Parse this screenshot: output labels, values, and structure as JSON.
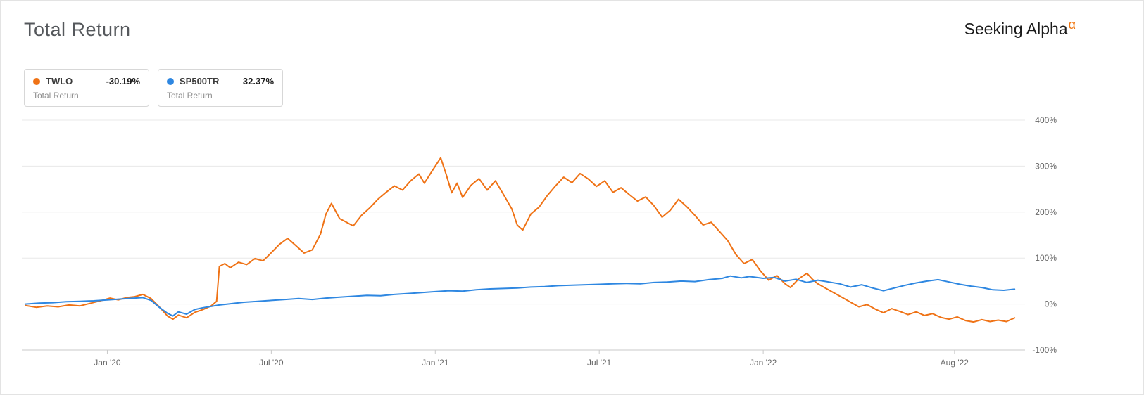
{
  "header": {
    "title": "Total Return",
    "brand": {
      "name": "Seeking Alpha",
      "alpha_symbol": "α",
      "alpha_color": "#f0750f"
    }
  },
  "legend": [
    {
      "ticker": "TWLO",
      "value": "-30.19%",
      "sublabel": "Total Return",
      "color": "#ef7215"
    },
    {
      "ticker": "SP500TR",
      "value": "32.37%",
      "sublabel": "Total Return",
      "color": "#2e87e1"
    }
  ],
  "chart_data": {
    "type": "line",
    "title": "Total Return",
    "grid": true,
    "legend_position": "top-left",
    "x_unit": "months-from-chart-start",
    "x_domain": [
      0,
      36.4
    ],
    "y_axis": {
      "min": -100,
      "max": 400,
      "ticks": [
        400,
        300,
        200,
        100,
        0,
        -100
      ],
      "suffix": "%"
    },
    "x_axis": {
      "ticks": [
        {
          "x": 3,
          "label": "Jan '20"
        },
        {
          "x": 9,
          "label": "Jul '20"
        },
        {
          "x": 15,
          "label": "Jan '21"
        },
        {
          "x": 21,
          "label": "Jul '21"
        },
        {
          "x": 27,
          "label": "Jan '22"
        },
        {
          "x": 34,
          "label": "Aug '22"
        }
      ]
    },
    "series": [
      {
        "name": "TWLO",
        "label": "Total Return",
        "final_value": "-30.19%",
        "color": "#ef7215",
        "points": [
          [
            0,
            -3
          ],
          [
            0.4,
            -7
          ],
          [
            0.8,
            -4
          ],
          [
            1.2,
            -6
          ],
          [
            1.6,
            -2
          ],
          [
            2,
            -4
          ],
          [
            2.4,
            2
          ],
          [
            2.8,
            8
          ],
          [
            3.1,
            13
          ],
          [
            3.4,
            9
          ],
          [
            3.7,
            14
          ],
          [
            4,
            16
          ],
          [
            4.3,
            21
          ],
          [
            4.6,
            12
          ],
          [
            4.9,
            -6
          ],
          [
            5.2,
            -26
          ],
          [
            5.4,
            -33
          ],
          [
            5.6,
            -24
          ],
          [
            5.9,
            -30
          ],
          [
            6.2,
            -18
          ],
          [
            6.5,
            -12
          ],
          [
            6.8,
            -4
          ],
          [
            7,
            6
          ],
          [
            7.1,
            82
          ],
          [
            7.3,
            88
          ],
          [
            7.5,
            79
          ],
          [
            7.8,
            91
          ],
          [
            8.1,
            86
          ],
          [
            8.4,
            99
          ],
          [
            8.7,
            94
          ],
          [
            9,
            112
          ],
          [
            9.3,
            130
          ],
          [
            9.6,
            143
          ],
          [
            9.9,
            127
          ],
          [
            10.2,
            111
          ],
          [
            10.5,
            118
          ],
          [
            10.8,
            152
          ],
          [
            11,
            196
          ],
          [
            11.2,
            219
          ],
          [
            11.5,
            186
          ],
          [
            12,
            170
          ],
          [
            12.3,
            193
          ],
          [
            12.6,
            209
          ],
          [
            12.9,
            228
          ],
          [
            13.2,
            243
          ],
          [
            13.5,
            257
          ],
          [
            13.8,
            248
          ],
          [
            14.1,
            268
          ],
          [
            14.4,
            283
          ],
          [
            14.6,
            263
          ],
          [
            14.9,
            291
          ],
          [
            15.2,
            318
          ],
          [
            15.4,
            282
          ],
          [
            15.6,
            242
          ],
          [
            15.8,
            263
          ],
          [
            16,
            232
          ],
          [
            16.3,
            258
          ],
          [
            16.6,
            273
          ],
          [
            16.9,
            248
          ],
          [
            17.2,
            268
          ],
          [
            17.5,
            238
          ],
          [
            17.8,
            207
          ],
          [
            18,
            172
          ],
          [
            18.2,
            161
          ],
          [
            18.5,
            196
          ],
          [
            18.8,
            211
          ],
          [
            19.1,
            236
          ],
          [
            19.4,
            257
          ],
          [
            19.7,
            276
          ],
          [
            20,
            264
          ],
          [
            20.3,
            284
          ],
          [
            20.6,
            272
          ],
          [
            20.9,
            256
          ],
          [
            21.2,
            268
          ],
          [
            21.5,
            243
          ],
          [
            21.8,
            253
          ],
          [
            22.1,
            238
          ],
          [
            22.4,
            224
          ],
          [
            22.7,
            233
          ],
          [
            23,
            214
          ],
          [
            23.3,
            189
          ],
          [
            23.6,
            204
          ],
          [
            23.9,
            228
          ],
          [
            24.2,
            212
          ],
          [
            24.5,
            193
          ],
          [
            24.8,
            172
          ],
          [
            25.1,
            178
          ],
          [
            25.4,
            158
          ],
          [
            25.7,
            138
          ],
          [
            26,
            108
          ],
          [
            26.3,
            88
          ],
          [
            26.6,
            97
          ],
          [
            26.9,
            72
          ],
          [
            27.2,
            52
          ],
          [
            27.5,
            62
          ],
          [
            27.8,
            44
          ],
          [
            28,
            36
          ],
          [
            28.3,
            55
          ],
          [
            28.6,
            67
          ],
          [
            28.8,
            54
          ],
          [
            29,
            44
          ],
          [
            29.3,
            34
          ],
          [
            29.6,
            24
          ],
          [
            29.9,
            14
          ],
          [
            30.2,
            4
          ],
          [
            30.5,
            -6
          ],
          [
            30.8,
            -1
          ],
          [
            31.1,
            -11
          ],
          [
            31.4,
            -19
          ],
          [
            31.7,
            -10
          ],
          [
            32,
            -16
          ],
          [
            32.3,
            -23
          ],
          [
            32.6,
            -17
          ],
          [
            32.9,
            -25
          ],
          [
            33.2,
            -21
          ],
          [
            33.5,
            -29
          ],
          [
            33.8,
            -33
          ],
          [
            34.1,
            -28
          ],
          [
            34.4,
            -36
          ],
          [
            34.7,
            -39
          ],
          [
            35,
            -34
          ],
          [
            35.3,
            -38
          ],
          [
            35.6,
            -35
          ],
          [
            35.9,
            -38
          ],
          [
            36.2,
            -30.19
          ]
        ]
      },
      {
        "name": "SP500TR",
        "label": "Total Return",
        "final_value": "32.37%",
        "color": "#2e87e1",
        "points": [
          [
            0,
            0
          ],
          [
            0.5,
            2
          ],
          [
            1,
            3
          ],
          [
            1.5,
            5
          ],
          [
            2,
            6
          ],
          [
            2.5,
            7
          ],
          [
            3,
            9
          ],
          [
            3.5,
            11
          ],
          [
            4,
            13
          ],
          [
            4.3,
            14
          ],
          [
            4.6,
            8
          ],
          [
            4.9,
            -7
          ],
          [
            5.2,
            -20
          ],
          [
            5.4,
            -26
          ],
          [
            5.6,
            -17
          ],
          [
            5.9,
            -22
          ],
          [
            6.2,
            -12
          ],
          [
            6.5,
            -8
          ],
          [
            6.8,
            -5
          ],
          [
            7.1,
            -2
          ],
          [
            7.4,
            0
          ],
          [
            7.7,
            2
          ],
          [
            8,
            4
          ],
          [
            8.5,
            6
          ],
          [
            9,
            8
          ],
          [
            9.5,
            10
          ],
          [
            10,
            12
          ],
          [
            10.5,
            10
          ],
          [
            11,
            13
          ],
          [
            11.5,
            15
          ],
          [
            12,
            17
          ],
          [
            12.5,
            19
          ],
          [
            13,
            18
          ],
          [
            13.5,
            21
          ],
          [
            14,
            23
          ],
          [
            14.5,
            25
          ],
          [
            15,
            27
          ],
          [
            15.5,
            29
          ],
          [
            16,
            28
          ],
          [
            16.5,
            31
          ],
          [
            17,
            33
          ],
          [
            17.5,
            34
          ],
          [
            18,
            35
          ],
          [
            18.5,
            37
          ],
          [
            19,
            38
          ],
          [
            19.5,
            40
          ],
          [
            20,
            41
          ],
          [
            20.5,
            42
          ],
          [
            21,
            43
          ],
          [
            21.5,
            44
          ],
          [
            22,
            45
          ],
          [
            22.5,
            44
          ],
          [
            23,
            47
          ],
          [
            23.5,
            48
          ],
          [
            24,
            50
          ],
          [
            24.5,
            49
          ],
          [
            25,
            53
          ],
          [
            25.5,
            56
          ],
          [
            25.8,
            61
          ],
          [
            26.2,
            57
          ],
          [
            26.5,
            60
          ],
          [
            27,
            56
          ],
          [
            27.4,
            58
          ],
          [
            27.8,
            50
          ],
          [
            28.2,
            54
          ],
          [
            28.6,
            47
          ],
          [
            29,
            52
          ],
          [
            29.4,
            48
          ],
          [
            29.8,
            44
          ],
          [
            30.2,
            37
          ],
          [
            30.6,
            42
          ],
          [
            31,
            35
          ],
          [
            31.4,
            29
          ],
          [
            31.8,
            35
          ],
          [
            32.2,
            41
          ],
          [
            32.6,
            46
          ],
          [
            33,
            50
          ],
          [
            33.4,
            53
          ],
          [
            33.8,
            48
          ],
          [
            34.2,
            43
          ],
          [
            34.6,
            39
          ],
          [
            35,
            36
          ],
          [
            35.4,
            31
          ],
          [
            35.8,
            30
          ],
          [
            36.2,
            32.37
          ]
        ]
      }
    ]
  }
}
